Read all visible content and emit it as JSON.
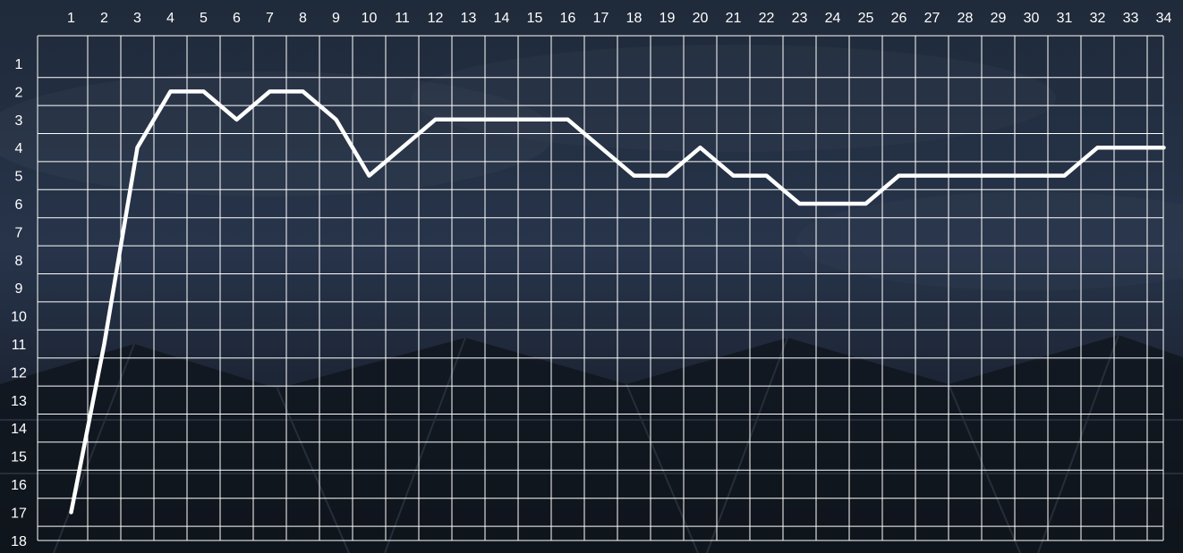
{
  "chart_data": {
    "type": "line",
    "title": "",
    "xlabel": "",
    "ylabel": "",
    "x": [
      1,
      2,
      3,
      4,
      5,
      6,
      7,
      8,
      9,
      10,
      11,
      12,
      13,
      14,
      15,
      16,
      17,
      18,
      19,
      20,
      21,
      22,
      23,
      24,
      25,
      26,
      27,
      28,
      29,
      30,
      31,
      32,
      33,
      34
    ],
    "series": [
      {
        "values": [
          17,
          11,
          4,
          2,
          2,
          3,
          2,
          2,
          3,
          5,
          4,
          3,
          3,
          3,
          3,
          3,
          4,
          5,
          5,
          4,
          5,
          5,
          6,
          6,
          6,
          5,
          5,
          5,
          5,
          5,
          5,
          4,
          4,
          4
        ]
      }
    ],
    "xlim": [
      1,
      34
    ],
    "ylim": [
      1,
      18
    ],
    "y_axis_inverted": true,
    "x_ticks_position": "top",
    "grid": true,
    "line_color": "#ffffff",
    "grid_color": "#ffffff",
    "background_color": "#1b2431"
  }
}
